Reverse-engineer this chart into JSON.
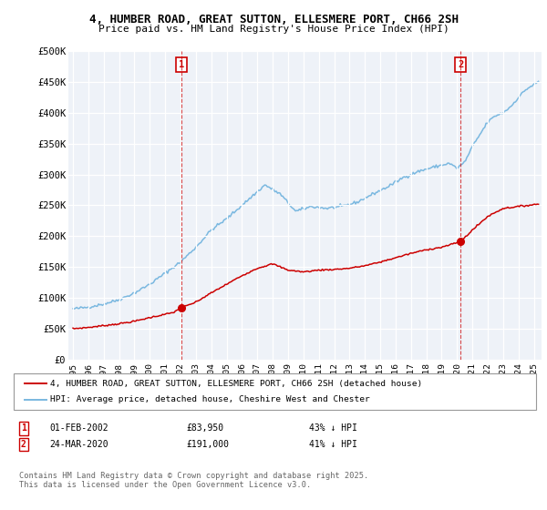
{
  "title": "4, HUMBER ROAD, GREAT SUTTON, ELLESMERE PORT, CH66 2SH",
  "subtitle": "Price paid vs. HM Land Registry's House Price Index (HPI)",
  "ylabel_ticks": [
    "£0",
    "£50K",
    "£100K",
    "£150K",
    "£200K",
    "£250K",
    "£300K",
    "£350K",
    "£400K",
    "£450K",
    "£500K"
  ],
  "ytick_vals": [
    0,
    50000,
    100000,
    150000,
    200000,
    250000,
    300000,
    350000,
    400000,
    450000,
    500000
  ],
  "ylim": [
    0,
    500000
  ],
  "xlim_start": 1994.7,
  "xlim_end": 2025.5,
  "hpi_color": "#7ab8e0",
  "price_color": "#cc0000",
  "marker1_x": 2002.083,
  "marker1_y": 83950,
  "marker2_x": 2020.23,
  "marker2_y": 191000,
  "legend_line1": "4, HUMBER ROAD, GREAT SUTTON, ELLESMERE PORT, CH66 2SH (detached house)",
  "legend_line2": "HPI: Average price, detached house, Cheshire West and Chester",
  "table_row1": [
    "1",
    "01-FEB-2002",
    "£83,950",
    "43% ↓ HPI"
  ],
  "table_row2": [
    "2",
    "24-MAR-2020",
    "£191,000",
    "41% ↓ HPI"
  ],
  "footer": "Contains HM Land Registry data © Crown copyright and database right 2025.\nThis data is licensed under the Open Government Licence v3.0.",
  "bg_color": "#ffffff",
  "plot_bg_color": "#eef2f8",
  "grid_color": "#ffffff"
}
